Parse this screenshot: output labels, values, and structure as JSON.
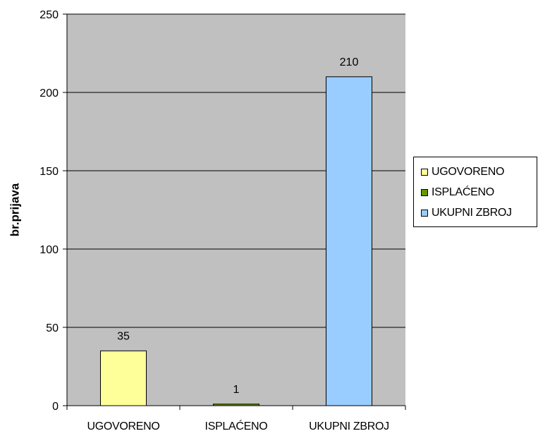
{
  "chart_data": {
    "type": "bar",
    "categories": [
      "UGOVORENO",
      "ISPLAĆENO",
      "UKUPNI ZBROJ"
    ],
    "values": [
      35,
      1,
      210
    ],
    "data_labels": [
      "35",
      "1",
      "210"
    ],
    "colors": [
      "#FFFF99",
      "#669900",
      "#99CCFF"
    ],
    "ylabel": "br.prijava",
    "xlabel": "",
    "ylim": [
      0,
      250
    ],
    "yticks": [
      0,
      50,
      100,
      150,
      200,
      250
    ],
    "ytick_labels": [
      "0",
      "50",
      "100",
      "150",
      "200",
      "250"
    ],
    "grid": true,
    "plot_background": "#C0C0C0",
    "legend": {
      "position": "right",
      "entries": [
        {
          "label": "UGOVORENO",
          "color": "#FFFF99"
        },
        {
          "label": "ISPLAĆENO",
          "color": "#669900"
        },
        {
          "label": "UKUPNI ZBROJ",
          "color": "#99CCFF"
        }
      ]
    }
  }
}
